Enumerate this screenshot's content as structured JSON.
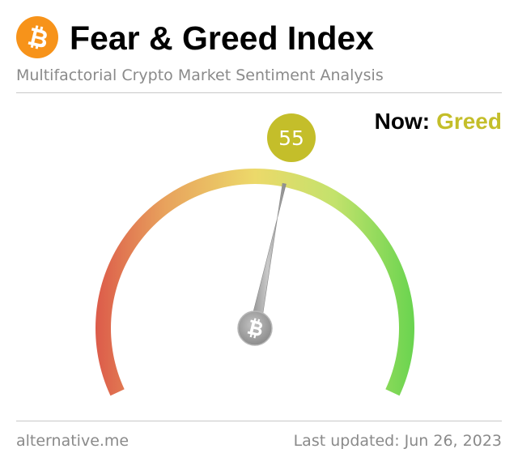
{
  "header": {
    "title": "Fear & Greed Index",
    "subtitle": "Multifactorial Crypto Market Sentiment Analysis",
    "logo_icon": "bitcoin-icon",
    "logo_color": "#f7931a"
  },
  "now": {
    "label": "Now:",
    "classification": "Greed",
    "classification_color": "#c4be2a"
  },
  "gauge": {
    "value": 55,
    "min": 0,
    "max": 100,
    "value_badge_color": "#c4be2a",
    "hub_icon": "bitcoin-icon",
    "gradient_colors": [
      "#dc5b4a",
      "#e8a35d",
      "#ecd96a",
      "#c3e26c",
      "#69d44f"
    ]
  },
  "footer": {
    "source": "alternative.me",
    "last_updated": "Last updated: Jun 26, 2023"
  }
}
